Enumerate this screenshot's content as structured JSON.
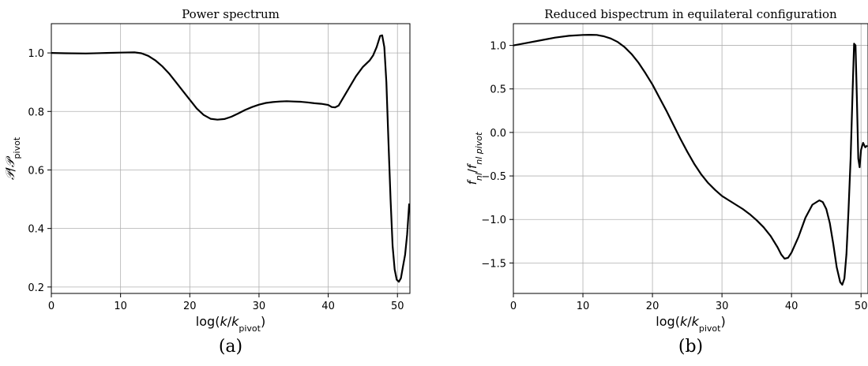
{
  "chart_data": [
    {
      "type": "line",
      "title": "Power spectrum",
      "xlabel": "log(k/k_pivot)",
      "ylabel": "P/P_pivot",
      "caption": "(a)",
      "xlim": [
        0,
        51.8
      ],
      "ylim": [
        0.178,
        1.1
      ],
      "xticks": [
        "0",
        "10",
        "20",
        "30",
        "40",
        "50"
      ],
      "yticks": [
        "0.2",
        "0.4",
        "0.6",
        "0.8",
        "1.0"
      ],
      "grid": true,
      "series": [
        {
          "x": [
            0,
            2,
            5,
            8,
            10,
            12,
            13,
            14,
            15,
            16,
            17,
            18,
            19,
            20,
            21,
            22,
            23,
            24,
            25,
            26,
            27,
            28,
            29,
            30,
            31,
            32,
            33,
            34,
            35,
            36,
            37,
            38,
            39,
            40,
            40.5,
            41,
            41.5,
            42,
            43,
            44,
            45,
            46,
            46.5,
            47,
            47.5,
            47.8,
            48.1,
            48.4,
            48.7,
            49,
            49.3,
            49.6,
            49.9,
            50.2,
            50.5,
            50.8,
            51.1,
            51.4,
            51.7
          ],
          "y": [
            1.0,
            0.999,
            0.998,
            1.0,
            1.001,
            1.002,
            0.999,
            0.99,
            0.975,
            0.955,
            0.93,
            0.9,
            0.87,
            0.84,
            0.81,
            0.788,
            0.775,
            0.772,
            0.774,
            0.782,
            0.793,
            0.805,
            0.815,
            0.823,
            0.829,
            0.832,
            0.834,
            0.835,
            0.834,
            0.833,
            0.831,
            0.828,
            0.826,
            0.822,
            0.815,
            0.814,
            0.82,
            0.84,
            0.88,
            0.92,
            0.952,
            0.975,
            0.992,
            1.02,
            1.058,
            1.06,
            1.02,
            0.9,
            0.7,
            0.5,
            0.34,
            0.26,
            0.225,
            0.218,
            0.23,
            0.27,
            0.31,
            0.38,
            0.485
          ]
        }
      ]
    },
    {
      "type": "line",
      "title": "Reduced bispectrum in equilateral configuration",
      "xlabel": "log(k/k_pivot)",
      "ylabel": "f_nl / f_nl pivot",
      "caption": "(b)",
      "xlim": [
        0,
        51
      ],
      "ylim": [
        -1.85,
        1.25
      ],
      "xticks": [
        "0",
        "10",
        "20",
        "30",
        "40",
        "50"
      ],
      "yticks": [
        "1.0",
        "0.5",
        "0.0",
        "−0.5",
        "−1.0",
        "−1.5"
      ],
      "grid": true,
      "series": [
        {
          "x": [
            0,
            2,
            4,
            6,
            8,
            10,
            11,
            12,
            13,
            14,
            15,
            16,
            17,
            18,
            19,
            20,
            21,
            22,
            23,
            24,
            25,
            26,
            27,
            28,
            29,
            30,
            31,
            32,
            33,
            34,
            35,
            36,
            37,
            38,
            38.5,
            39,
            39.5,
            40,
            41,
            42,
            43,
            44,
            44.5,
            45,
            45.5,
            46,
            46.5,
            47,
            47.3,
            47.6,
            47.9,
            48.2,
            48.5,
            48.8,
            49,
            49.2,
            49.4,
            49.6,
            49.8,
            50,
            50.3,
            50.6,
            50.9
          ],
          "y": [
            1.0,
            1.03,
            1.06,
            1.09,
            1.11,
            1.12,
            1.122,
            1.12,
            1.105,
            1.08,
            1.04,
            0.98,
            0.9,
            0.8,
            0.68,
            0.55,
            0.4,
            0.25,
            0.09,
            -0.07,
            -0.22,
            -0.36,
            -0.48,
            -0.58,
            -0.66,
            -0.73,
            -0.78,
            -0.83,
            -0.88,
            -0.94,
            -1.01,
            -1.09,
            -1.19,
            -1.32,
            -1.4,
            -1.45,
            -1.44,
            -1.38,
            -1.2,
            -0.98,
            -0.83,
            -0.78,
            -0.8,
            -0.88,
            -1.04,
            -1.28,
            -1.55,
            -1.72,
            -1.75,
            -1.68,
            -1.4,
            -0.9,
            -0.3,
            0.5,
            1.02,
            1.0,
            0.4,
            -0.3,
            -0.4,
            -0.2,
            -0.12,
            -0.17,
            -0.15
          ]
        }
      ]
    }
  ]
}
